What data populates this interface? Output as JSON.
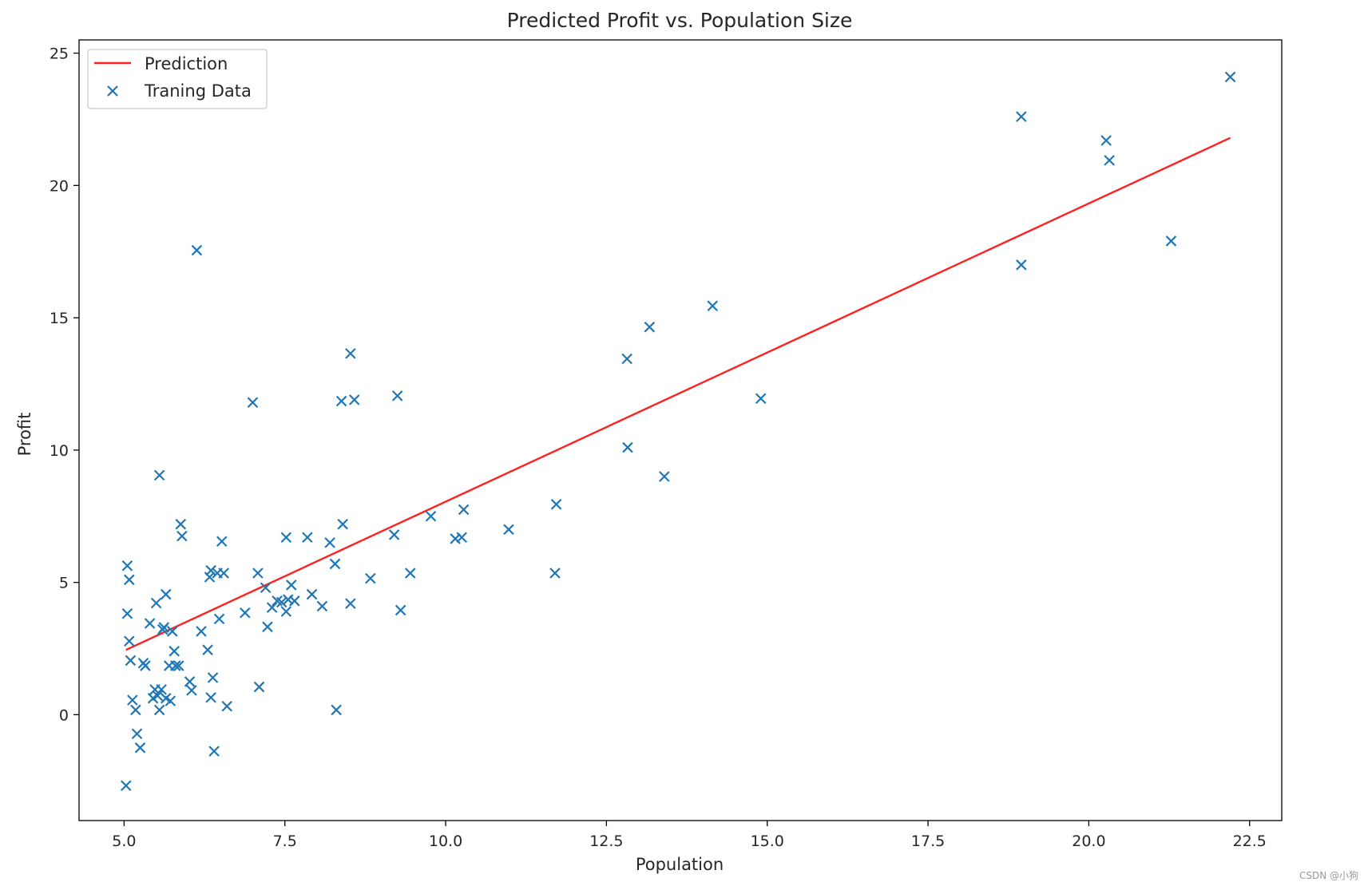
{
  "chart_data": {
    "type": "scatter",
    "title": "Predicted Profit vs. Population Size",
    "xlabel": "Population",
    "ylabel": "Profit",
    "xlim": [
      4.3,
      23.0
    ],
    "ylim": [
      -4.0,
      25.5
    ],
    "xticks": [
      "5.0",
      "7.5",
      "10.0",
      "12.5",
      "15.0",
      "17.5",
      "20.0",
      "22.5"
    ],
    "yticks": [
      "0",
      "5",
      "10",
      "15",
      "20",
      "25"
    ],
    "grid": false,
    "legend": {
      "position": "top-left",
      "entries": [
        "Prediction",
        "Traning Data"
      ]
    },
    "colors": {
      "line": "#ff2020",
      "points": "#1f77b4",
      "axes": "#000000",
      "legend_border": "#cccccc"
    },
    "prediction": {
      "name": "Prediction",
      "type": "line",
      "x": [
        5.03,
        22.2
      ],
      "y": [
        2.45,
        21.8
      ]
    },
    "training": {
      "name": "Traning Data",
      "type": "scatter",
      "marker": "x",
      "x": [
        5.03,
        5.05,
        5.05,
        5.08,
        5.08,
        5.1,
        5.13,
        5.18,
        5.2,
        5.25,
        5.3,
        5.33,
        5.4,
        5.45,
        5.48,
        5.5,
        5.52,
        5.55,
        5.55,
        5.58,
        5.6,
        5.62,
        5.65,
        5.65,
        5.7,
        5.72,
        5.75,
        5.78,
        5.8,
        5.85,
        5.88,
        5.9,
        6.02,
        6.05,
        6.13,
        6.2,
        6.3,
        6.33,
        6.35,
        6.35,
        6.38,
        6.4,
        6.45,
        6.48,
        6.52,
        6.55,
        6.6,
        6.88,
        7.0,
        7.08,
        7.1,
        7.2,
        7.23,
        7.3,
        7.38,
        7.45,
        7.52,
        7.52,
        7.55,
        7.6,
        7.65,
        7.85,
        7.92,
        8.08,
        8.2,
        8.28,
        8.3,
        8.38,
        8.4,
        8.52,
        8.52,
        8.58,
        8.83,
        9.2,
        9.25,
        9.3,
        9.45,
        9.77,
        10.15,
        10.25,
        10.28,
        10.98,
        11.7,
        11.72,
        12.82,
        12.83,
        13.17,
        13.4,
        14.15,
        14.9,
        18.95,
        18.95,
        20.27,
        20.32,
        21.28,
        22.2
      ],
      "y": [
        -2.68,
        3.82,
        5.63,
        2.78,
        5.1,
        2.05,
        0.55,
        0.18,
        -0.72,
        -1.25,
        1.95,
        1.85,
        3.45,
        0.62,
        0.95,
        4.22,
        0.72,
        9.05,
        0.18,
        0.95,
        3.22,
        3.3,
        0.62,
        4.55,
        1.85,
        0.52,
        3.15,
        2.4,
        1.85,
        1.85,
        7.2,
        6.75,
        1.25,
        0.92,
        17.55,
        3.15,
        2.45,
        5.2,
        5.45,
        0.65,
        1.4,
        -1.38,
        5.35,
        3.62,
        6.55,
        5.35,
        0.32,
        3.85,
        11.8,
        5.35,
        1.05,
        4.8,
        3.32,
        4.05,
        4.3,
        4.25,
        6.7,
        3.9,
        4.35,
        4.9,
        4.3,
        6.7,
        4.55,
        4.1,
        6.5,
        5.7,
        0.18,
        11.85,
        7.2,
        13.65,
        4.2,
        11.9,
        5.15,
        6.8,
        12.05,
        3.95,
        5.35,
        7.5,
        6.65,
        6.7,
        7.75,
        7.0,
        5.35,
        7.95,
        13.45,
        10.1,
        14.65,
        9.0,
        15.45,
        11.95,
        22.6,
        17.0,
        21.7,
        20.95,
        17.9,
        24.1
      ]
    }
  },
  "watermark": "CSDN @小狗"
}
